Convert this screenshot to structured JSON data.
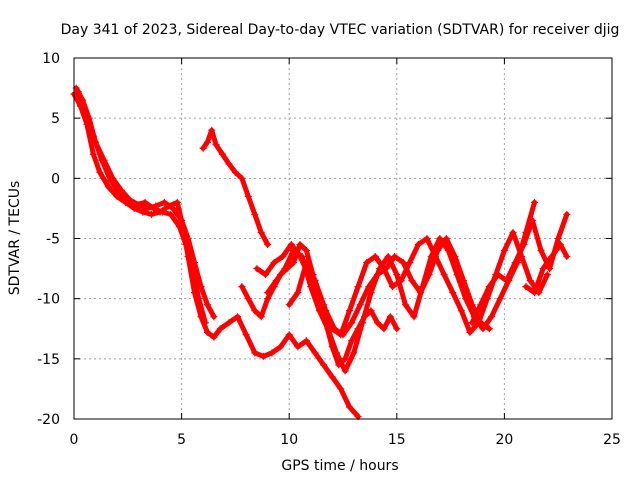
{
  "chart_data": {
    "type": "scatter",
    "title": "Day 341 of 2023, Sidereal Day-to-day VTEC variation (SDTVAR) for receiver djig",
    "xlabel": "GPS time / hours",
    "ylabel": "SDTVAR / TECUs",
    "xlim": [
      0,
      25
    ],
    "ylim": [
      -20,
      10
    ],
    "xticks": [
      0,
      5,
      10,
      15,
      20,
      25
    ],
    "yticks": [
      -20,
      -15,
      -10,
      -5,
      0,
      5,
      10
    ],
    "x_tick_labels": [
      "0",
      "5",
      "10",
      "15",
      "20",
      "25"
    ],
    "y_tick_labels": [
      "-20",
      "-15",
      "-10",
      "-5",
      "0",
      "5",
      "10"
    ],
    "grid": true,
    "marker": "+",
    "series": [
      {
        "name": "seg1",
        "color": "#ff0000",
        "x": [
          0.0,
          0.3,
          0.6,
          0.9,
          1.2,
          1.6,
          2.0,
          2.4,
          2.8,
          3.2,
          3.6,
          4.0,
          4.4,
          4.8,
          5.0,
          5.3,
          5.6,
          5.9,
          6.2,
          6.5,
          6.8,
          7.2,
          7.6,
          8.0,
          8.4,
          8.8,
          9.2,
          9.6,
          10.0,
          10.4,
          10.8,
          11.2,
          11.6,
          12.0,
          12.4,
          12.8,
          13.2
        ],
        "y": [
          7.0,
          6.0,
          4.5,
          2.0,
          0.5,
          -0.7,
          -1.5,
          -2.0,
          -2.5,
          -2.8,
          -3.0,
          -2.8,
          -2.3,
          -2.0,
          -3.5,
          -6.5,
          -9.5,
          -11.5,
          -12.8,
          -13.2,
          -12.5,
          -12.0,
          -11.5,
          -13.0,
          -14.5,
          -14.8,
          -14.5,
          -14.0,
          -13.0,
          -14.0,
          -13.5,
          -14.5,
          -15.5,
          -16.5,
          -17.5,
          -19.0,
          -19.8
        ]
      },
      {
        "name": "seg2",
        "color": "#ff0000",
        "x": [
          0.1,
          0.4,
          0.7,
          1.0,
          1.4,
          1.8,
          2.2,
          2.6,
          3.0,
          3.4,
          3.8,
          4.2,
          4.6,
          5.0,
          5.3,
          5.6,
          5.9,
          6.2,
          6.5
        ],
        "y": [
          7.5,
          6.5,
          5.0,
          3.0,
          1.5,
          0.0,
          -1.0,
          -1.8,
          -2.2,
          -2.5,
          -2.3,
          -2.0,
          -2.5,
          -3.5,
          -5.0,
          -7.0,
          -9.0,
          -10.5,
          -11.5
        ]
      },
      {
        "name": "seg3",
        "color": "#ff0000",
        "x": [
          0.2,
          0.5,
          0.9,
          1.3,
          1.7,
          2.1,
          2.5,
          2.9,
          3.3,
          3.7,
          4.1,
          4.5,
          4.9,
          5.2,
          5.5,
          5.8,
          6.1
        ],
        "y": [
          7.2,
          5.5,
          3.5,
          1.5,
          -0.2,
          -1.2,
          -1.8,
          -2.2,
          -2.0,
          -2.5,
          -2.8,
          -3.0,
          -4.0,
          -5.5,
          -7.5,
          -10.0,
          -12.0
        ]
      },
      {
        "name": "seg4",
        "color": "#ff0000",
        "x": [
          6.0,
          6.2,
          6.4,
          6.6,
          6.9,
          7.2,
          7.5,
          7.8,
          8.1,
          8.4,
          8.7,
          9.0
        ],
        "y": [
          2.5,
          3.0,
          4.0,
          2.8,
          2.0,
          1.2,
          0.5,
          0.0,
          -1.5,
          -3.0,
          -4.5,
          -5.5
        ]
      },
      {
        "name": "seg5",
        "color": "#ff0000",
        "x": [
          7.8,
          8.1,
          8.4,
          8.7,
          9.0,
          9.3,
          9.6,
          9.9,
          10.2,
          10.5,
          10.8,
          11.1,
          11.4,
          11.7,
          12.0,
          12.3,
          12.6,
          12.9,
          13.2,
          13.5,
          13.8,
          14.1,
          14.4,
          14.7,
          15.0
        ],
        "y": [
          -9.0,
          -10.0,
          -11.0,
          -11.5,
          -10.0,
          -9.0,
          -8.0,
          -7.5,
          -7.0,
          -5.5,
          -6.0,
          -8.0,
          -10.0,
          -12.0,
          -14.0,
          -15.5,
          -15.0,
          -13.5,
          -12.5,
          -11.5,
          -11.0,
          -12.0,
          -12.5,
          -11.5,
          -12.5
        ]
      },
      {
        "name": "seg6",
        "color": "#ff0000",
        "x": [
          8.5,
          8.9,
          9.3,
          9.7,
          10.1,
          10.5,
          10.9,
          11.3,
          11.7,
          12.1,
          12.5,
          12.9,
          13.3,
          13.7,
          14.1,
          14.5,
          14.9,
          15.3,
          15.7,
          16.1,
          16.5,
          16.9,
          17.3,
          17.7,
          18.1,
          18.5,
          18.9,
          19.3
        ],
        "y": [
          -7.5,
          -8.0,
          -7.0,
          -6.5,
          -5.5,
          -6.5,
          -8.0,
          -9.5,
          -11.0,
          -12.5,
          -13.0,
          -12.0,
          -10.5,
          -9.0,
          -8.0,
          -7.5,
          -6.5,
          -7.0,
          -8.5,
          -9.5,
          -8.0,
          -6.0,
          -5.0,
          -6.5,
          -8.5,
          -10.5,
          -12.0,
          -12.5
        ]
      },
      {
        "name": "seg7",
        "color": "#ff0000",
        "x": [
          9.0,
          9.4,
          9.8,
          10.2,
          10.6,
          11.0,
          11.4,
          11.8,
          12.2,
          12.6,
          13.0,
          13.4,
          13.8,
          14.2,
          14.6,
          15.0,
          15.4,
          15.8,
          16.2,
          16.6,
          17.0,
          17.4,
          17.8,
          18.2,
          18.6,
          19.0,
          19.4,
          19.8,
          20.2,
          20.6,
          21.0,
          21.4
        ],
        "y": [
          -9.5,
          -8.5,
          -7.5,
          -6.0,
          -6.5,
          -9.0,
          -11.0,
          -12.5,
          -14.5,
          -16.0,
          -14.5,
          -12.0,
          -9.5,
          -7.5,
          -6.5,
          -8.0,
          -10.5,
          -11.5,
          -9.0,
          -6.5,
          -5.0,
          -6.0,
          -8.0,
          -10.0,
          -11.5,
          -12.5,
          -11.5,
          -10.0,
          -8.5,
          -7.0,
          -4.5,
          -2.0
        ]
      },
      {
        "name": "seg8",
        "color": "#ff0000",
        "x": [
          10.0,
          10.4,
          10.8,
          11.2,
          11.6,
          12.0,
          12.4,
          12.8,
          13.2,
          13.6,
          14.0,
          14.4,
          14.8,
          15.2,
          15.6,
          16.0,
          16.4,
          16.8,
          17.2,
          17.6,
          18.0,
          18.4,
          18.8,
          19.2,
          19.6,
          20.0,
          20.4,
          20.8,
          21.2,
          21.6,
          22.0
        ],
        "y": [
          -10.5,
          -9.5,
          -7.0,
          -8.5,
          -10.5,
          -12.5,
          -13.0,
          -11.0,
          -9.0,
          -7.0,
          -6.5,
          -7.5,
          -9.0,
          -8.5,
          -7.0,
          -5.5,
          -5.0,
          -6.5,
          -8.0,
          -9.5,
          -11.0,
          -12.8,
          -12.0,
          -10.0,
          -8.0,
          -6.0,
          -4.5,
          -6.5,
          -8.5,
          -9.5,
          -8.0
        ]
      },
      {
        "name": "seg9",
        "color": "#ff0000",
        "x": [
          18.5,
          18.9,
          19.3,
          19.7,
          20.1,
          20.5,
          20.9,
          21.3,
          21.7,
          22.1,
          22.5,
          22.9
        ],
        "y": [
          -12.0,
          -10.5,
          -9.0,
          -8.0,
          -8.5,
          -7.0,
          -5.5,
          -3.5,
          -6.0,
          -7.5,
          -5.0,
          -3.0
        ]
      },
      {
        "name": "seg10",
        "color": "#ff0000",
        "x": [
          21.0,
          21.4,
          21.8,
          22.2,
          22.6,
          22.9
        ],
        "y": [
          -9.0,
          -9.5,
          -7.5,
          -6.5,
          -5.5,
          -6.5
        ]
      }
    ]
  }
}
